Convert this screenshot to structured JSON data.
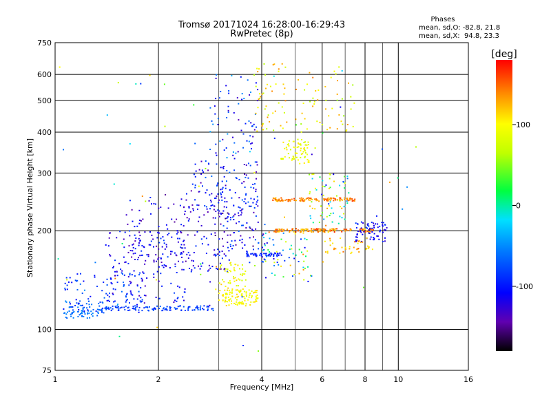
{
  "chart_data": {
    "type": "scatter",
    "title": "Tromsø 20171024 16:28:00-16:29:43",
    "subtitle": "RwPretec (8p)",
    "stats": {
      "header": "Phases",
      "line_o": "mean, sd,O: -82.8, 21.8",
      "line_x": "mean, sd,X:  94.8, 23.3"
    },
    "xlabel": "Frequency [MHz]",
    "ylabel": "Stationary phase Virtual Height [km]",
    "xscale": "log",
    "yscale": "log",
    "xlim": [
      1,
      16
    ],
    "ylim": [
      75,
      750
    ],
    "x_ticks": [
      {
        "value": 1,
        "label": "1"
      },
      {
        "value": 2,
        "label": "2"
      },
      {
        "value": 4,
        "label": "4"
      },
      {
        "value": 6,
        "label": "6"
      },
      {
        "value": 8,
        "label": "8"
      },
      {
        "value": 10,
        "label": "10"
      },
      {
        "value": 16,
        "label": "16"
      }
    ],
    "x_minor": [
      3,
      5,
      7,
      9
    ],
    "y_ticks": [
      {
        "value": 75,
        "label": "75"
      },
      {
        "value": 100,
        "label": "100"
      },
      {
        "value": 200,
        "label": "200"
      },
      {
        "value": 300,
        "label": "300"
      },
      {
        "value": 400,
        "label": "400"
      },
      {
        "value": 500,
        "label": "500"
      },
      {
        "value": 600,
        "label": "600"
      },
      {
        "value": 750,
        "label": "750"
      }
    ],
    "grid": true,
    "colorbar": {
      "label": "[deg]",
      "range": [
        -180,
        180
      ],
      "ticks": [
        {
          "value": 100,
          "label": "100"
        },
        {
          "value": 0,
          "label": "0"
        },
        {
          "value": -100,
          "label": "-100"
        }
      ]
    },
    "clusters": [
      {
        "f": [
          1.05,
          1.35
        ],
        "h": [
          108,
          122
        ],
        "phase": [
          -70,
          -50
        ],
        "n": 70
      },
      {
        "f": [
          1.05,
          1.8
        ],
        "h": [
          112,
          150
        ],
        "phase": [
          -110,
          -60
        ],
        "n": 90
      },
      {
        "f": [
          1.35,
          2.9
        ],
        "h": [
          114,
          118
        ],
        "phase": [
          -95,
          -65
        ],
        "n": 120
      },
      {
        "f": [
          1.4,
          2.4
        ],
        "h": [
          120,
          200
        ],
        "phase": [
          -140,
          -80
        ],
        "n": 150
      },
      {
        "f": [
          1.6,
          2.5
        ],
        "h": [
          160,
          260
        ],
        "phase": [
          -150,
          -90
        ],
        "n": 80
      },
      {
        "f": [
          2.3,
          3.2
        ],
        "h": [
          150,
          240
        ],
        "phase": [
          -150,
          -80
        ],
        "n": 90
      },
      {
        "f": [
          2.5,
          3.9
        ],
        "h": [
          230,
          330
        ],
        "phase": [
          -145,
          -60
        ],
        "n": 130
      },
      {
        "f": [
          2.8,
          3.9
        ],
        "h": [
          330,
          600
        ],
        "phase": [
          -140,
          -40
        ],
        "n": 70
      },
      {
        "f": [
          3.0,
          3.9
        ],
        "h": [
          118,
          132
        ],
        "phase": [
          85,
          115
        ],
        "n": 110
      },
      {
        "f": [
          3.0,
          3.6
        ],
        "h": [
          132,
          160
        ],
        "phase": [
          70,
          120
        ],
        "n": 50
      },
      {
        "f": [
          2.9,
          4.1
        ],
        "h": [
          160,
          230
        ],
        "phase": [
          -160,
          -60
        ],
        "n": 90
      },
      {
        "f": [
          3.6,
          4.6
        ],
        "h": [
          167,
          171
        ],
        "phase": [
          -110,
          -80
        ],
        "n": 50
      },
      {
        "f": [
          3.8,
          4.8
        ],
        "h": [
          400,
          650
        ],
        "phase": [
          60,
          140
        ],
        "n": 50
      },
      {
        "f": [
          4.0,
          5.5
        ],
        "h": [
          140,
          200
        ],
        "phase": [
          -120,
          140
        ],
        "n": 60
      },
      {
        "f": [
          4.5,
          5.5
        ],
        "h": [
          320,
          380
        ],
        "phase": [
          70,
          110
        ],
        "n": 70
      },
      {
        "f": [
          4.3,
          7.5
        ],
        "h": [
          246,
          252
        ],
        "phase": [
          120,
          160
        ],
        "n": 110
      },
      {
        "f": [
          4.2,
          8.5
        ],
        "h": [
          198,
          203
        ],
        "phase": [
          110,
          170
        ],
        "n": 130
      },
      {
        "f": [
          5.0,
          7.5
        ],
        "h": [
          400,
          620
        ],
        "phase": [
          50,
          140
        ],
        "n": 50
      },
      {
        "f": [
          5.5,
          7.2
        ],
        "h": [
          210,
          300
        ],
        "phase": [
          -120,
          140
        ],
        "n": 70
      },
      {
        "f": [
          7.5,
          9.3
        ],
        "h": [
          185,
          215
        ],
        "phase": [
          -130,
          -80
        ],
        "n": 70
      },
      {
        "f": [
          6.0,
          8.5
        ],
        "h": [
          170,
          190
        ],
        "phase": [
          100,
          150
        ],
        "n": 40
      },
      {
        "f": [
          1.0,
          12.5
        ],
        "h": [
          85,
          650
        ],
        "phase": [
          -150,
          150
        ],
        "n": 70
      }
    ]
  }
}
